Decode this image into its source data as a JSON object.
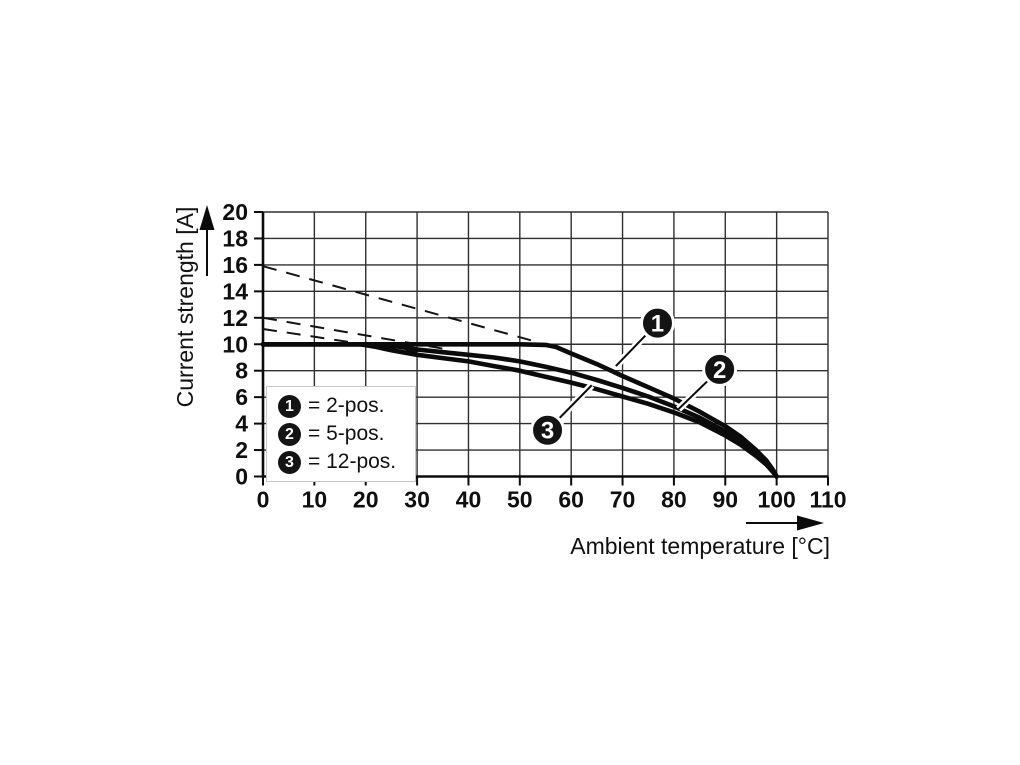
{
  "chart_data": {
    "type": "line",
    "title": "",
    "xlabel": "Ambient temperature [°C]",
    "ylabel": "Current strength [A]",
    "xlim": [
      0,
      110
    ],
    "ylim": [
      0,
      20
    ],
    "x_ticks": [
      0,
      10,
      20,
      30,
      40,
      50,
      60,
      70,
      80,
      90,
      100,
      110
    ],
    "y_ticks": [
      0,
      2,
      4,
      6,
      8,
      10,
      12,
      14,
      16,
      18,
      20
    ],
    "grid": true,
    "colors": {
      "curve": "#0b0b0b",
      "grid": "#2f2f2f",
      "background": "#ffffff"
    },
    "series": [
      {
        "name": "2-pos.",
        "callout": "1",
        "style": "solid",
        "points": [
          [
            0,
            10
          ],
          [
            50,
            10
          ],
          [
            55,
            9.95
          ],
          [
            57,
            9.8
          ],
          [
            60,
            9.3
          ],
          [
            65,
            8.5
          ],
          [
            70,
            7.6
          ],
          [
            75,
            6.75
          ],
          [
            80,
            5.9
          ],
          [
            85,
            4.9
          ],
          [
            90,
            3.8
          ],
          [
            93,
            3.0
          ],
          [
            96,
            2.0
          ],
          [
            98,
            1.2
          ],
          [
            99.3,
            0.5
          ],
          [
            100,
            0
          ]
        ]
      },
      {
        "name": "5-pos.",
        "callout": "2",
        "style": "solid",
        "points": [
          [
            0,
            10
          ],
          [
            22,
            10
          ],
          [
            25,
            9.9
          ],
          [
            30,
            9.6
          ],
          [
            35,
            9.4
          ],
          [
            40,
            9.2
          ],
          [
            45,
            9.0
          ],
          [
            50,
            8.7
          ],
          [
            55,
            8.3
          ],
          [
            60,
            7.85
          ],
          [
            65,
            7.3
          ],
          [
            70,
            6.7
          ],
          [
            75,
            6.05
          ],
          [
            80,
            5.3
          ],
          [
            85,
            4.45
          ],
          [
            90,
            3.4
          ],
          [
            93,
            2.6
          ],
          [
            96,
            1.7
          ],
          [
            98,
            1.0
          ],
          [
            99.3,
            0.4
          ],
          [
            100,
            0
          ]
        ]
      },
      {
        "name": "12-pos.",
        "callout": "3",
        "style": "solid",
        "points": [
          [
            0,
            10
          ],
          [
            19,
            10
          ],
          [
            22,
            9.8
          ],
          [
            25,
            9.55
          ],
          [
            30,
            9.2
          ],
          [
            35,
            8.95
          ],
          [
            40,
            8.7
          ],
          [
            45,
            8.35
          ],
          [
            50,
            8.0
          ],
          [
            55,
            7.55
          ],
          [
            60,
            7.1
          ],
          [
            65,
            6.6
          ],
          [
            70,
            6.05
          ],
          [
            75,
            5.5
          ],
          [
            80,
            4.85
          ],
          [
            85,
            4.1
          ],
          [
            90,
            3.1
          ],
          [
            93,
            2.4
          ],
          [
            96,
            1.55
          ],
          [
            98,
            0.9
          ],
          [
            99.3,
            0.35
          ],
          [
            100,
            0
          ]
        ]
      },
      {
        "name": "2-pos. linear extrapolation",
        "style": "dashed",
        "points": [
          [
            0,
            15.9
          ],
          [
            54,
            10.1
          ]
        ]
      },
      {
        "name": "5-pos. linear extrapolation",
        "style": "dashed",
        "points": [
          [
            0,
            12.0
          ],
          [
            36,
            9.6
          ]
        ]
      },
      {
        "name": "12-pos. linear extrapolation",
        "style": "dashed",
        "points": [
          [
            0,
            11.15
          ],
          [
            30,
            9.4
          ]
        ]
      }
    ],
    "callouts": [
      {
        "num": "1",
        "circle": [
          76.8,
          11.6
        ],
        "target": [
          68.7,
          8.35
        ]
      },
      {
        "num": "2",
        "circle": [
          88.9,
          8.1
        ],
        "target": [
          80.9,
          5.1
        ]
      },
      {
        "num": "3",
        "circle": [
          55.4,
          3.5
        ],
        "target": [
          64.0,
          6.9
        ]
      }
    ],
    "legend": {
      "position": "inside lower-left",
      "items": [
        {
          "num": "1",
          "label": "= 2-pos."
        },
        {
          "num": "2",
          "label": "= 5-pos."
        },
        {
          "num": "3",
          "label": "= 12-pos."
        }
      ]
    }
  }
}
